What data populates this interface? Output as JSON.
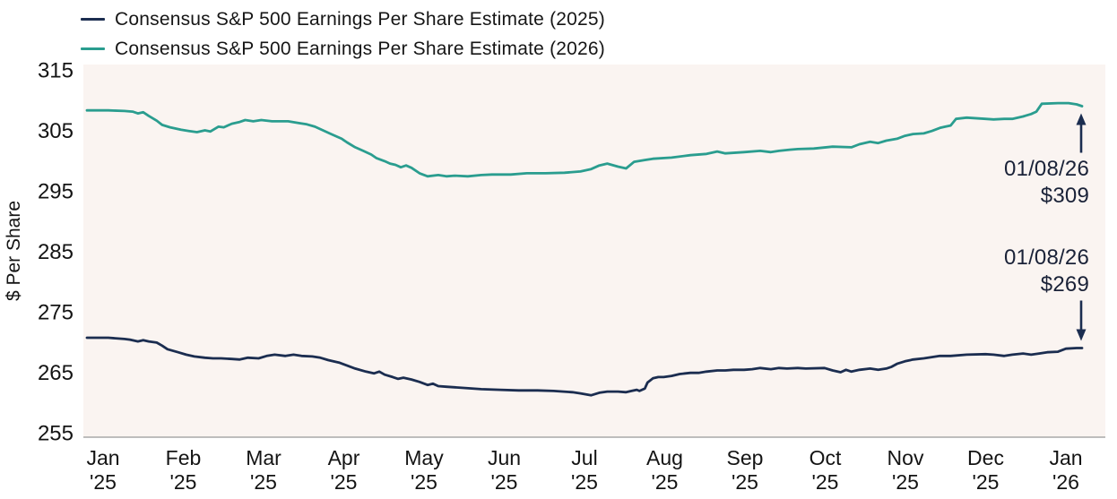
{
  "legend": {
    "items": [
      {
        "label": "Consensus S&P 500 Earnings Per Share Estimate (2025)",
        "color": "#1b2d50"
      },
      {
        "label": "Consensus S&P 500 Earnings Per Share Estimate (2026)",
        "color": "#2a9d8f"
      }
    ]
  },
  "annotations": [
    {
      "date": "01/08/26",
      "value": "$309",
      "series": "2026",
      "arrow": "up"
    },
    {
      "date": "01/08/26",
      "value": "$269",
      "series": "2025",
      "arrow": "down"
    }
  ],
  "colors": {
    "navy": "#1b2d50",
    "teal": "#2a9d8f",
    "plot_background": "#faf4f1",
    "axis_line": "#a8a8a8",
    "tick_text": "#141414",
    "annotation_text": "#1a2238"
  },
  "chart_data": {
    "type": "line",
    "title": "",
    "xlabel": "",
    "ylabel": "$ Per Share",
    "ylim": [
      255,
      315
    ],
    "yticks": [
      255,
      265,
      275,
      285,
      295,
      305,
      315
    ],
    "xticks": [
      {
        "month": "Jan",
        "year": "'25"
      },
      {
        "month": "Feb",
        "year": "'25"
      },
      {
        "month": "Mar",
        "year": "'25"
      },
      {
        "month": "Apr",
        "year": "'25"
      },
      {
        "month": "May",
        "year": "'25"
      },
      {
        "month": "Jun",
        "year": "'25"
      },
      {
        "month": "Jul",
        "year": "'25"
      },
      {
        "month": "Aug",
        "year": "'25"
      },
      {
        "month": "Sep",
        "year": "'25"
      },
      {
        "month": "Oct",
        "year": "'25"
      },
      {
        "month": "Nov",
        "year": "'25"
      },
      {
        "month": "Dec",
        "year": "'25"
      },
      {
        "month": "Jan",
        "year": "'26"
      }
    ],
    "x_unit": "days, Jan 2025 through Jan 8 2026",
    "x_domain": [
      0,
      371
    ],
    "grid": false,
    "legend_position": "top-left",
    "series": [
      {
        "name": "Consensus S&P 500 Earnings Per Share Estimate (2025)",
        "color": "#1b2d50",
        "end_label": "$269",
        "points": [
          [
            0,
            270.7
          ],
          [
            8,
            270.7
          ],
          [
            14,
            270.5
          ],
          [
            16,
            270.4
          ],
          [
            19,
            270.1
          ],
          [
            21,
            270.3
          ],
          [
            23,
            270.1
          ],
          [
            26,
            269.9
          ],
          [
            28,
            269.4
          ],
          [
            30,
            268.8
          ],
          [
            34,
            268.3
          ],
          [
            37,
            267.9
          ],
          [
            40,
            267.6
          ],
          [
            44,
            267.4
          ],
          [
            47,
            267.3
          ],
          [
            50,
            267.3
          ],
          [
            54,
            267.2
          ],
          [
            57,
            267.1
          ],
          [
            60,
            267.4
          ],
          [
            64,
            267.3
          ],
          [
            67,
            267.7
          ],
          [
            70,
            267.9
          ],
          [
            74,
            267.7
          ],
          [
            77,
            267.9
          ],
          [
            80,
            267.7
          ],
          [
            84,
            267.6
          ],
          [
            87,
            267.4
          ],
          [
            90,
            267.0
          ],
          [
            94,
            266.6
          ],
          [
            97,
            266.1
          ],
          [
            100,
            265.6
          ],
          [
            104,
            265.1
          ],
          [
            107,
            264.8
          ],
          [
            109,
            265.1
          ],
          [
            111,
            264.6
          ],
          [
            114,
            264.2
          ],
          [
            116,
            263.9
          ],
          [
            118,
            264.1
          ],
          [
            121,
            263.8
          ],
          [
            124,
            263.4
          ],
          [
            127,
            262.9
          ],
          [
            129,
            263.1
          ],
          [
            131,
            262.7
          ],
          [
            134,
            262.6
          ],
          [
            141,
            262.4
          ],
          [
            147,
            262.2
          ],
          [
            154,
            262.1
          ],
          [
            161,
            262.0
          ],
          [
            168,
            262.0
          ],
          [
            174,
            261.9
          ],
          [
            181,
            261.7
          ],
          [
            184,
            261.5
          ],
          [
            188,
            261.2
          ],
          [
            191,
            261.6
          ],
          [
            194,
            261.8
          ],
          [
            198,
            261.8
          ],
          [
            201,
            261.7
          ],
          [
            203,
            261.9
          ],
          [
            205,
            262.1
          ],
          [
            206,
            261.9
          ],
          [
            208,
            262.3
          ],
          [
            209,
            263.3
          ],
          [
            211,
            264.0
          ],
          [
            213,
            264.2
          ],
          [
            215,
            264.2
          ],
          [
            218,
            264.4
          ],
          [
            221,
            264.7
          ],
          [
            225,
            264.9
          ],
          [
            228,
            264.9
          ],
          [
            231,
            265.1
          ],
          [
            235,
            265.3
          ],
          [
            238,
            265.3
          ],
          [
            241,
            265.4
          ],
          [
            245,
            265.4
          ],
          [
            248,
            265.5
          ],
          [
            251,
            265.7
          ],
          [
            255,
            265.5
          ],
          [
            258,
            265.7
          ],
          [
            261,
            265.6
          ],
          [
            265,
            265.7
          ],
          [
            268,
            265.6
          ],
          [
            275,
            265.7
          ],
          [
            278,
            265.3
          ],
          [
            281,
            265.0
          ],
          [
            283,
            265.4
          ],
          [
            285,
            265.1
          ],
          [
            288,
            265.4
          ],
          [
            292,
            265.6
          ],
          [
            295,
            265.4
          ],
          [
            298,
            265.6
          ],
          [
            300,
            265.9
          ],
          [
            302,
            266.4
          ],
          [
            305,
            266.8
          ],
          [
            308,
            267.1
          ],
          [
            312,
            267.3
          ],
          [
            315,
            267.5
          ],
          [
            318,
            267.7
          ],
          [
            322,
            267.7
          ],
          [
            328,
            267.9
          ],
          [
            335,
            268.0
          ],
          [
            338,
            267.9
          ],
          [
            342,
            267.7
          ],
          [
            345,
            267.9
          ],
          [
            349,
            268.1
          ],
          [
            352,
            267.9
          ],
          [
            355,
            268.1
          ],
          [
            358,
            268.3
          ],
          [
            362,
            268.4
          ],
          [
            365,
            268.9
          ],
          [
            369,
            269.0
          ],
          [
            371,
            269.0
          ]
        ]
      },
      {
        "name": "Consensus S&P 500 Earnings Per Share Estimate (2026)",
        "color": "#2a9d8f",
        "end_label": "$309",
        "points": [
          [
            0,
            308.3
          ],
          [
            8,
            308.3
          ],
          [
            14,
            308.2
          ],
          [
            17,
            308.1
          ],
          [
            19,
            307.8
          ],
          [
            21,
            308.0
          ],
          [
            23,
            307.4
          ],
          [
            26,
            306.6
          ],
          [
            28,
            305.9
          ],
          [
            31,
            305.5
          ],
          [
            35,
            305.1
          ],
          [
            38,
            304.9
          ],
          [
            41,
            304.7
          ],
          [
            44,
            305.0
          ],
          [
            46,
            304.8
          ],
          [
            49,
            305.6
          ],
          [
            51,
            305.5
          ],
          [
            54,
            306.1
          ],
          [
            57,
            306.4
          ],
          [
            59,
            306.7
          ],
          [
            62,
            306.5
          ],
          [
            65,
            306.7
          ],
          [
            69,
            306.5
          ],
          [
            75,
            306.5
          ],
          [
            79,
            306.2
          ],
          [
            82,
            306.0
          ],
          [
            85,
            305.6
          ],
          [
            88,
            305.0
          ],
          [
            91,
            304.4
          ],
          [
            95,
            303.6
          ],
          [
            97,
            303.0
          ],
          [
            100,
            302.2
          ],
          [
            103,
            301.6
          ],
          [
            106,
            301.0
          ],
          [
            108,
            300.4
          ],
          [
            111,
            299.9
          ],
          [
            113,
            299.5
          ],
          [
            115,
            299.3
          ],
          [
            117,
            298.9
          ],
          [
            119,
            299.2
          ],
          [
            121,
            298.8
          ],
          [
            124,
            297.9
          ],
          [
            127,
            297.4
          ],
          [
            131,
            297.6
          ],
          [
            134,
            297.4
          ],
          [
            137,
            297.5
          ],
          [
            142,
            297.4
          ],
          [
            147,
            297.6
          ],
          [
            151,
            297.7
          ],
          [
            158,
            297.7
          ],
          [
            164,
            297.9
          ],
          [
            171,
            297.9
          ],
          [
            178,
            298.0
          ],
          [
            184,
            298.2
          ],
          [
            188,
            298.6
          ],
          [
            191,
            299.2
          ],
          [
            194,
            299.5
          ],
          [
            198,
            299.0
          ],
          [
            201,
            298.7
          ],
          [
            204,
            299.8
          ],
          [
            208,
            300.1
          ],
          [
            211,
            300.3
          ],
          [
            218,
            300.5
          ],
          [
            225,
            300.9
          ],
          [
            231,
            301.1
          ],
          [
            235,
            301.5
          ],
          [
            238,
            301.2
          ],
          [
            245,
            301.4
          ],
          [
            251,
            301.6
          ],
          [
            255,
            301.4
          ],
          [
            258,
            301.6
          ],
          [
            262,
            301.8
          ],
          [
            265,
            301.9
          ],
          [
            271,
            302.0
          ],
          [
            278,
            302.3
          ],
          [
            285,
            302.2
          ],
          [
            288,
            302.7
          ],
          [
            292,
            303.1
          ],
          [
            295,
            302.9
          ],
          [
            298,
            303.3
          ],
          [
            302,
            303.6
          ],
          [
            305,
            304.1
          ],
          [
            308,
            304.4
          ],
          [
            312,
            304.5
          ],
          [
            315,
            304.9
          ],
          [
            318,
            305.4
          ],
          [
            320,
            305.6
          ],
          [
            322,
            305.8
          ],
          [
            324,
            306.9
          ],
          [
            328,
            307.1
          ],
          [
            335,
            306.9
          ],
          [
            338,
            306.8
          ],
          [
            342,
            306.9
          ],
          [
            345,
            306.9
          ],
          [
            349,
            307.3
          ],
          [
            352,
            307.7
          ],
          [
            354,
            308.1
          ],
          [
            356,
            309.4
          ],
          [
            362,
            309.5
          ],
          [
            366,
            309.5
          ],
          [
            369,
            309.3
          ],
          [
            371,
            309.0
          ]
        ]
      }
    ]
  }
}
